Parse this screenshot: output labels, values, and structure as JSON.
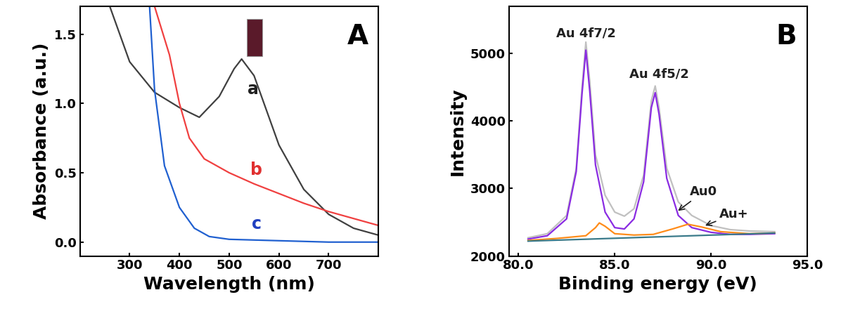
{
  "chart_data": [
    {
      "type": "line",
      "panel": "A",
      "x_label": "Wavelength (nm)",
      "y_label": "Absorbance (a.u.)",
      "xlim": [
        200,
        800
      ],
      "xticks": [
        300,
        400,
        500,
        600,
        700
      ],
      "ylim": [
        -0.1,
        1.7
      ],
      "yticks": [
        0.0,
        0.5,
        1.0,
        1.5
      ],
      "series": [
        {
          "color": "#404040",
          "x": [
            260,
            300,
            350,
            400,
            440,
            480,
            510,
            525,
            550,
            580,
            600,
            650,
            700,
            750,
            800
          ],
          "values": [
            1.7,
            1.3,
            1.08,
            0.97,
            0.9,
            1.05,
            1.25,
            1.32,
            1.2,
            0.9,
            0.7,
            0.38,
            0.2,
            0.1,
            0.05
          ]
        },
        {
          "color": "#f04040",
          "x": [
            350,
            380,
            400,
            420,
            450,
            500,
            550,
            600,
            650,
            700,
            750,
            800
          ],
          "values": [
            1.7,
            1.35,
            1.0,
            0.75,
            0.6,
            0.5,
            0.42,
            0.35,
            0.28,
            0.22,
            0.17,
            0.12
          ]
        },
        {
          "color": "#2060d0",
          "x": [
            340,
            350,
            370,
            400,
            430,
            460,
            500,
            600,
            700,
            800
          ],
          "values": [
            1.7,
            1.1,
            0.55,
            0.25,
            0.1,
            0.04,
            0.02,
            0.01,
            0.0,
            0.0
          ]
        }
      ],
      "annotations": [
        {
          "text": "a",
          "x": 548,
          "y": 1.1,
          "color": "#202020"
        },
        {
          "text": "b",
          "x": 555,
          "y": 0.52,
          "color": "#e03030"
        },
        {
          "text": "c",
          "x": 555,
          "y": 0.13,
          "color": "#2040c0"
        }
      ]
    },
    {
      "type": "line",
      "panel": "B",
      "x_label": "Binding energy (eV)",
      "y_label": "Intensity",
      "xlim": [
        79.5,
        95.0
      ],
      "xticks": [
        80.0,
        85.0,
        90.0,
        95.0
      ],
      "ylim": [
        2000,
        5700
      ],
      "yticks": [
        2000,
        3000,
        4000,
        5000
      ],
      "series": [
        {
          "color": "#c0c0c0",
          "x": [
            80.5,
            81.5,
            82.5,
            83.0,
            83.3,
            83.5,
            83.7,
            84.0,
            84.5,
            85.0,
            85.5,
            86.0,
            86.5,
            86.9,
            87.1,
            87.3,
            87.7,
            88.3,
            89.0,
            90.0,
            91.0,
            92.0,
            93.3
          ],
          "values": [
            2270,
            2330,
            2600,
            3300,
            4500,
            5170,
            4600,
            3500,
            2900,
            2650,
            2590,
            2700,
            3200,
            4300,
            4520,
            4200,
            3300,
            2800,
            2600,
            2450,
            2390,
            2370,
            2360
          ]
        },
        {
          "color": "#8a2be2",
          "x": [
            80.5,
            81.5,
            82.5,
            83.0,
            83.3,
            83.5,
            83.7,
            84.0,
            84.5,
            85.0,
            85.5,
            86.0,
            86.5,
            86.9,
            87.1,
            87.3,
            87.7,
            88.3,
            89.0,
            90.0,
            91.0,
            92.0,
            93.3
          ],
          "values": [
            2250,
            2300,
            2550,
            3250,
            4400,
            5050,
            4450,
            3350,
            2650,
            2420,
            2400,
            2550,
            3100,
            4200,
            4420,
            4100,
            3150,
            2600,
            2420,
            2350,
            2320,
            2320,
            2330
          ]
        },
        {
          "color": "#ff8c1a",
          "x": [
            80.5,
            82.0,
            83.5,
            84.0,
            84.2,
            84.5,
            85.0,
            86.0,
            87.0,
            88.0,
            88.8,
            89.5,
            90.5,
            92.0,
            93.3
          ],
          "values": [
            2230,
            2260,
            2300,
            2420,
            2490,
            2440,
            2330,
            2310,
            2320,
            2400,
            2470,
            2430,
            2360,
            2330,
            2340
          ]
        },
        {
          "color": "#3a7a8a",
          "x": [
            80.5,
            93.3
          ],
          "values": [
            2220,
            2340
          ]
        }
      ],
      "annotations": [
        {
          "text": "Au 4f7/2",
          "x": 83.5,
          "y": 5300,
          "color": "#202020"
        },
        {
          "text": "Au 4f5/2",
          "x": 87.3,
          "y": 4700,
          "color": "#202020"
        },
        {
          "text": "Au0",
          "x": 89.6,
          "y": 2950,
          "color": "#202020",
          "arrow_to": [
            88.2,
            2650
          ]
        },
        {
          "text": "Au+",
          "x": 91.2,
          "y": 2620,
          "color": "#202020",
          "arrow_to": [
            89.6,
            2440
          ]
        }
      ]
    }
  ]
}
